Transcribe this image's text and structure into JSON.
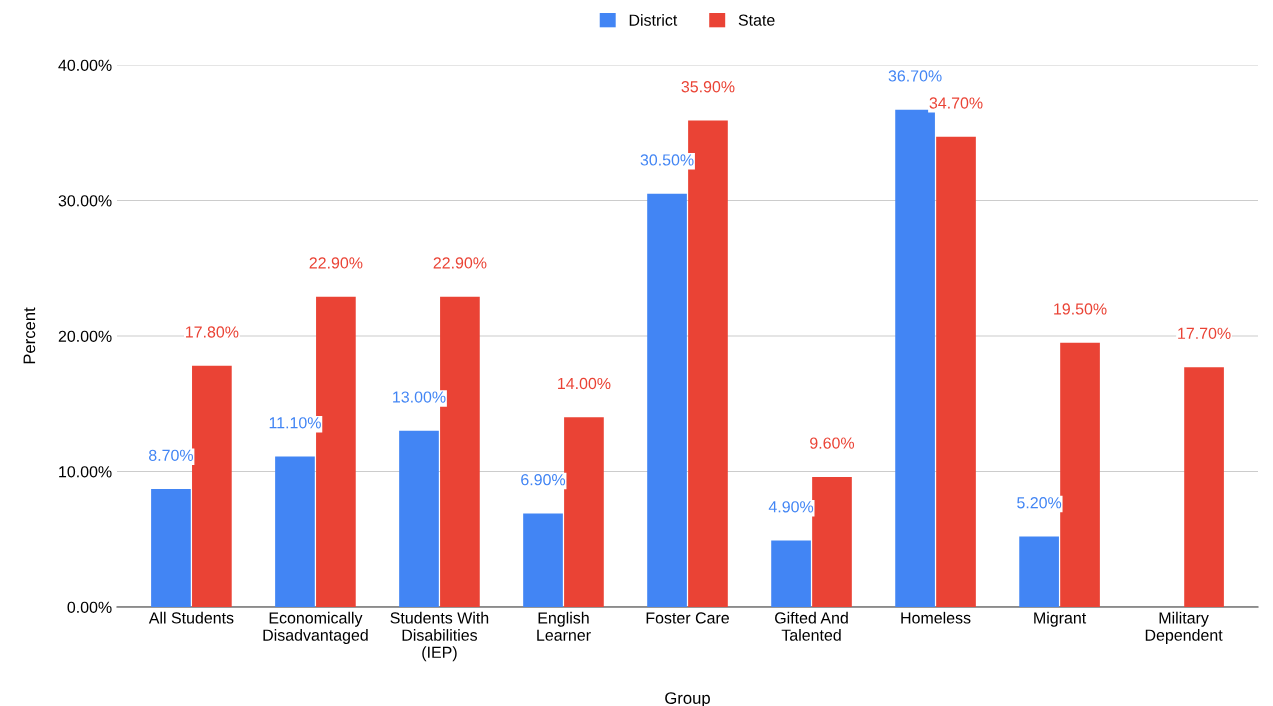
{
  "chart_data": {
    "type": "bar",
    "xlabel": "Group",
    "ylabel": "Percent",
    "categories": [
      "All Students",
      "Economically\nDisadvantaged",
      "Students With\nDisabilities\n(IEP)",
      "English\nLearner",
      "Foster Care",
      "Gifted And\nTalented",
      "Homeless",
      "Migrant",
      "Military\nDependent"
    ],
    "series": [
      {
        "name": "District",
        "color": "#4285f4",
        "values": [
          8.7,
          11.1,
          13.0,
          6.9,
          30.5,
          4.9,
          36.7,
          5.2,
          null
        ],
        "value_labels": [
          "8.70%",
          "11.10%",
          "13.00%",
          "6.90%",
          "30.50%",
          "4.90%",
          "36.70%",
          "5.20%",
          null
        ]
      },
      {
        "name": "State",
        "color": "#ea4335",
        "values": [
          17.8,
          22.9,
          22.9,
          14.0,
          35.9,
          9.6,
          34.7,
          19.5,
          17.7
        ],
        "value_labels": [
          "17.80%",
          "22.90%",
          "22.90%",
          "14.00%",
          "35.90%",
          "9.60%",
          "34.70%",
          "19.50%",
          "17.70%"
        ]
      }
    ],
    "ylim": [
      0,
      40
    ],
    "yticks": [
      {
        "value": 0,
        "label": "0.00%"
      },
      {
        "value": 10,
        "label": "10.00%"
      },
      {
        "value": 20,
        "label": "20.00%"
      },
      {
        "value": 30,
        "label": "30.00%"
      },
      {
        "value": 40,
        "label": "40.00%"
      }
    ],
    "grid": "y",
    "legend": "top"
  }
}
